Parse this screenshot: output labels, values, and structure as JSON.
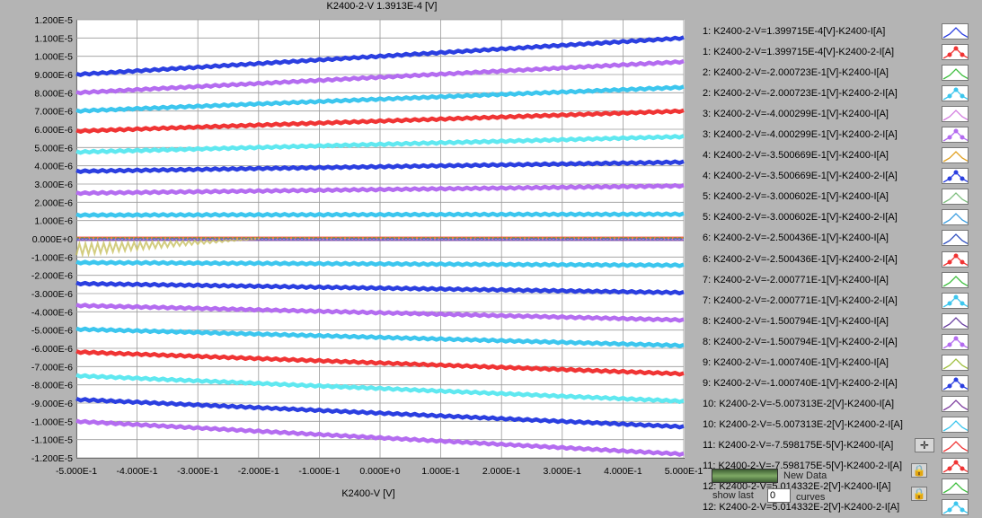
{
  "title": "K2400-2-V 1.3913E-4 [V]",
  "chart_data": {
    "type": "line",
    "title": "K2400-2-V 1.3913E-4 [V]",
    "xlabel": "K2400-V  [V]",
    "ylabel": "",
    "xlim": [
      -0.5,
      0.5
    ],
    "ylim": [
      -1.2e-05,
      1.2e-05
    ],
    "x_ticks": [
      "-5.000E-1",
      "-4.000E-1",
      "-3.000E-1",
      "-2.000E-1",
      "-1.000E-1",
      "0.000E+0",
      "1.000E-1",
      "2.000E-1",
      "3.000E-1",
      "4.000E-1",
      "5.000E-1"
    ],
    "y_ticks": [
      "1.200E-5",
      "1.100E-5",
      "1.000E-5",
      "9.000E-6",
      "8.000E-6",
      "7.000E-6",
      "6.000E-6",
      "5.000E-6",
      "4.000E-6",
      "3.000E-6",
      "2.000E-6",
      "1.000E-6",
      "0.000E+0",
      "-1.000E-6",
      "-2.000E-6",
      "-3.000E-6",
      "-4.000E-6",
      "-5.000E-6",
      "-6.000E-6",
      "-7.000E-6",
      "-8.000E-6",
      "-9.000E-6",
      "-1.000E-5",
      "-1.100E-5",
      "-1.200E-5"
    ],
    "grid": true,
    "legend_position": "right",
    "series": [
      {
        "color": "#2b3fe0",
        "y_start": 9e-06,
        "y_end": 1.1e-05
      },
      {
        "color": "#b46cf0",
        "y_start": 8e-06,
        "y_end": 9.7e-06
      },
      {
        "color": "#3cc6ee",
        "y_start": 7e-06,
        "y_end": 8.3e-06
      },
      {
        "color": "#f03434",
        "y_start": 5.9e-06,
        "y_end": 7e-06
      },
      {
        "color": "#5fe8f0",
        "y_start": 4.75e-06,
        "y_end": 5.6e-06
      },
      {
        "color": "#2b3fe0",
        "y_start": 3.7e-06,
        "y_end": 4.2e-06
      },
      {
        "color": "#b46cf0",
        "y_start": 2.5e-06,
        "y_end": 2.9e-06
      },
      {
        "color": "#3cc6ee",
        "y_start": 1.3e-06,
        "y_end": 1.35e-06
      },
      {
        "color": "#3cc6ee",
        "y_start": -1.3e-06,
        "y_end": -1.45e-06
      },
      {
        "color": "#2b3fe0",
        "y_start": -2.45e-06,
        "y_end": -2.95e-06
      },
      {
        "color": "#b46cf0",
        "y_start": -3.65e-06,
        "y_end": -4.45e-06
      },
      {
        "color": "#3cc6ee",
        "y_start": -4.95e-06,
        "y_end": -5.85e-06
      },
      {
        "color": "#f03434",
        "y_start": -6.2e-06,
        "y_end": -7.4e-06
      },
      {
        "color": "#5fe8f0",
        "y_start": -7.5e-06,
        "y_end": -8.9e-06
      },
      {
        "color": "#2b3fe0",
        "y_start": -8.8e-06,
        "y_end": -1.03e-05
      },
      {
        "color": "#b46cf0",
        "y_start": -1e-05,
        "y_end": -1.18e-05
      }
    ]
  },
  "legend": [
    {
      "label": "1: K2400-2-V=1.399715E-4[V]-K2400-I[A]",
      "color": "#2b3fe0",
      "marker": false
    },
    {
      "label": "1: K2400-2-V=1.399715E-4[V]-K2400-2-I[A]",
      "color": "#f03434",
      "marker": true
    },
    {
      "label": "2: K2400-2-V=-2.000723E-1[V]-K2400-I[A]",
      "color": "#3fbf3f",
      "marker": false
    },
    {
      "label": "2: K2400-2-V=-2.000723E-1[V]-K2400-2-I[A]",
      "color": "#3cc6ee",
      "marker": true
    },
    {
      "label": "3: K2400-2-V=-4.000299E-1[V]-K2400-I[A]",
      "color": "#d47fe0",
      "marker": false
    },
    {
      "label": "3: K2400-2-V=-4.000299E-1[V]-K2400-2-I[A]",
      "color": "#b46cf0",
      "marker": true
    },
    {
      "label": "4: K2400-2-V=-3.500669E-1[V]-K2400-I[A]",
      "color": "#e0a020",
      "marker": false
    },
    {
      "label": "4: K2400-2-V=-3.500669E-1[V]-K2400-2-I[A]",
      "color": "#2b3fe0",
      "marker": true
    },
    {
      "label": "5: K2400-2-V=-3.000602E-1[V]-K2400-I[A]",
      "color": "#7fbf7f",
      "marker": false
    },
    {
      "label": "5: K2400-2-V=-3.000602E-1[V]-K2400-2-I[A]",
      "color": "#3c9ee0",
      "marker": false
    },
    {
      "label": "6: K2400-2-V=-2.500436E-1[V]-K2400-I[A]",
      "color": "#3050c0",
      "marker": false
    },
    {
      "label": "6: K2400-2-V=-2.500436E-1[V]-K2400-2-I[A]",
      "color": "#f03434",
      "marker": true
    },
    {
      "label": "7: K2400-2-V=-2.000771E-1[V]-K2400-I[A]",
      "color": "#3fbf3f",
      "marker": false
    },
    {
      "label": "7: K2400-2-V=-2.000771E-1[V]-K2400-2-I[A]",
      "color": "#3cc6ee",
      "marker": true
    },
    {
      "label": "8: K2400-2-V=-1.500794E-1[V]-K2400-I[A]",
      "color": "#6a40a0",
      "marker": false
    },
    {
      "label": "8: K2400-2-V=-1.500794E-1[V]-K2400-2-I[A]",
      "color": "#b46cf0",
      "marker": true
    },
    {
      "label": "9: K2400-2-V=-1.000740E-1[V]-K2400-I[A]",
      "color": "#a0c040",
      "marker": false
    },
    {
      "label": "9: K2400-2-V=-1.000740E-1[V]-K2400-2-I[A]",
      "color": "#2b3fe0",
      "marker": true
    },
    {
      "label": "10: K2400-2-V=-5.007313E-2[V]-K2400-I[A]",
      "color": "#7f3fa0",
      "marker": false
    },
    {
      "label": "10: K2400-2-V=-5.007313E-2[V]-K2400-2-I[A]",
      "color": "#3cc6ee",
      "marker": false
    },
    {
      "label": "11: K2400-2-V=-7.598175E-5[V]-K2400-I[A]",
      "color": "#f03434",
      "marker": false
    },
    {
      "label": "11: K2400-2-V=-7.598175E-5[V]-K2400-2-I[A]",
      "color": "#f03434",
      "marker": true
    },
    {
      "label": "12: K2400-2-V=5.014332E-2[V]-K2400-I[A]",
      "color": "#3fbf3f",
      "marker": false
    },
    {
      "label": "12: K2400-2-V=5.014332E-2[V]-K2400-2-I[A]",
      "color": "#3cc6ee",
      "marker": true
    }
  ],
  "tools": {
    "new_data_label": "New Data",
    "show_last_label": "show last",
    "curves_value": "0",
    "curves_label": "curves",
    "crosshair_glyph": "✛",
    "lock_glyph": "🔒"
  }
}
